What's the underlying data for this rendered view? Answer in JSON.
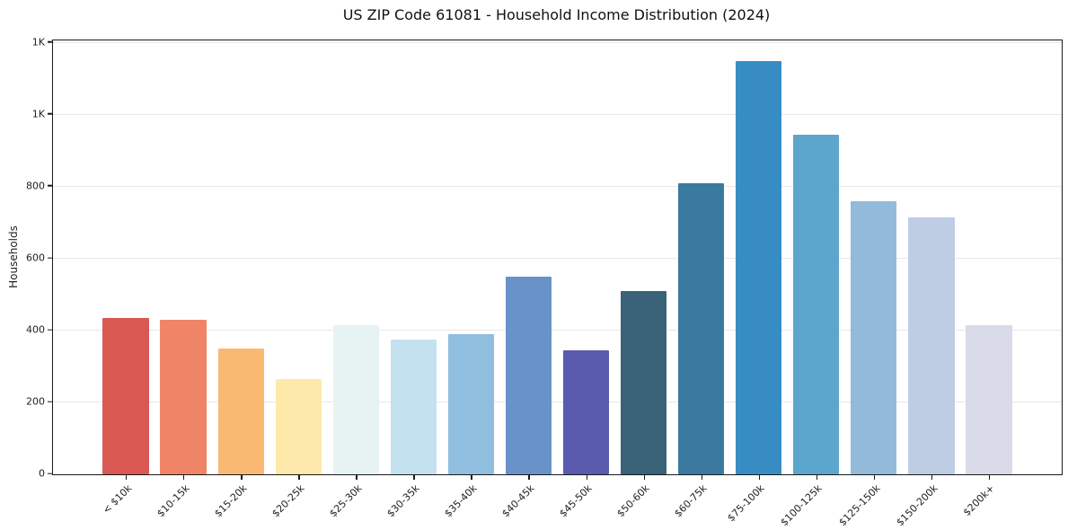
{
  "chart_data": {
    "type": "bar",
    "title": "US ZIP Code 61081 - Household Income Distribution (2024)",
    "xlabel": "",
    "ylabel": "Households",
    "categories": [
      "< $10k",
      "$10-15k",
      "$15-20k",
      "$20-25k",
      "$25-30k",
      "$30-35k",
      "$35-40k",
      "$40-45k",
      "$45-50k",
      "$50-60k",
      "$60-75k",
      "$75-100k",
      "$100-125k",
      "$125-150k",
      "$150-200k",
      "$200k+"
    ],
    "values": [
      435,
      430,
      350,
      265,
      415,
      375,
      390,
      550,
      345,
      510,
      810,
      1150,
      945,
      760,
      715,
      415
    ],
    "bar_colors": [
      "#d95852",
      "#f08466",
      "#fab973",
      "#fde9a9",
      "#e7f2f3",
      "#c3e1ef",
      "#90bede",
      "#6793c8",
      "#5a5bae",
      "#3a6379",
      "#3b7aa0",
      "#378dc3",
      "#5ca6cd",
      "#94bad9",
      "#becde3",
      "#d9dbe8"
    ],
    "ylim": [
      0,
      1207
    ],
    "yticks": [
      {
        "value": 0,
        "label": "0"
      },
      {
        "value": 200,
        "label": "200"
      },
      {
        "value": 400,
        "label": "400"
      },
      {
        "value": 600,
        "label": "600"
      },
      {
        "value": 800,
        "label": "800"
      },
      {
        "value": 1000,
        "label": "1K"
      },
      {
        "value": 1200,
        "label": "1K"
      }
    ],
    "grid": "horizontal",
    "grid_color": "#e8e8e8",
    "spine_color": "#1a1a1a",
    "legend": "none"
  }
}
